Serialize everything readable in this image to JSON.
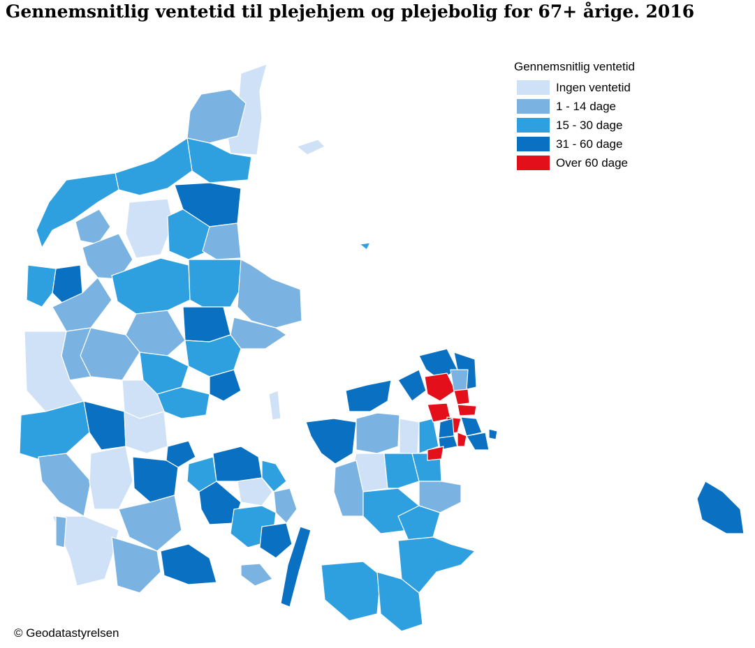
{
  "title": "Gennemsnitlig ventetid til plejehjem og plejebolig for 67+ årige. 2016",
  "legend": {
    "title": "Gennemsnitlig ventetid",
    "items": [
      {
        "label": "Ingen ventetid",
        "color": "#cfe1f6"
      },
      {
        "label": "1 - 14 dage",
        "color": "#7ab3e2"
      },
      {
        "label": "15 - 30 dage",
        "color": "#2fa0df"
      },
      {
        "label": "31 - 60 dage",
        "color": "#0970c2"
      },
      {
        "label": "Over 60 dage",
        "color": "#e3101b"
      }
    ]
  },
  "credit": "© Geodatastyrelsen"
}
